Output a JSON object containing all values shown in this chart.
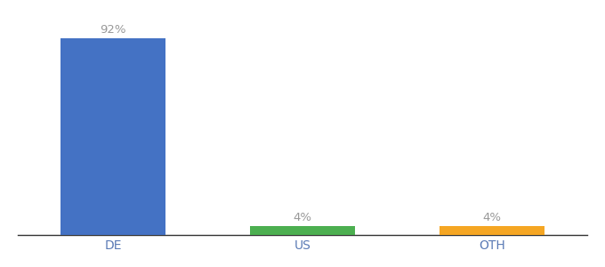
{
  "categories": [
    "DE",
    "US",
    "OTH"
  ],
  "values": [
    92,
    4,
    4
  ],
  "labels": [
    "92%",
    "4%",
    "4%"
  ],
  "bar_colors": [
    "#4472c4",
    "#4caf50",
    "#f5a623"
  ],
  "background_color": "#ffffff",
  "ylim": [
    0,
    100
  ],
  "label_fontsize": 9.5,
  "tick_fontsize": 10,
  "label_color": "#999999",
  "tick_color": "#5a7ab5",
  "bar_width": 0.55,
  "xlim_left": -0.5,
  "xlim_right": 2.5
}
